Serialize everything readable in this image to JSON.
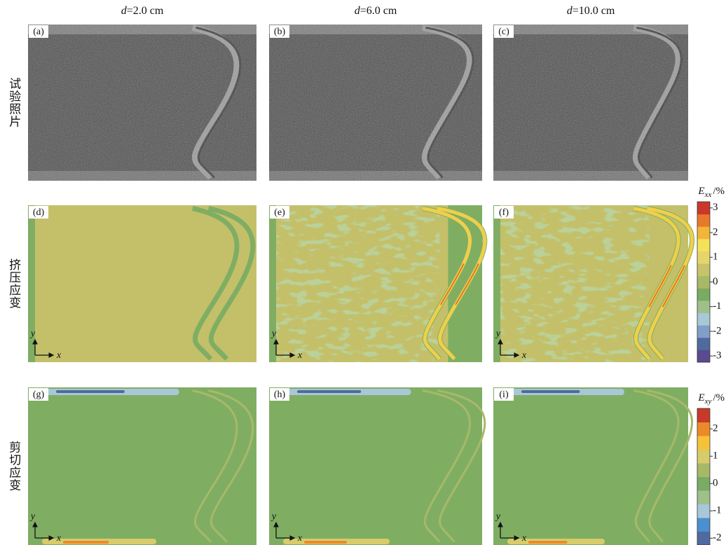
{
  "columns": [
    {
      "variable": "d",
      "value": "=2.0 cm"
    },
    {
      "variable": "d",
      "value": "=6.0 cm"
    },
    {
      "variable": "d",
      "value": "=10.0 cm"
    }
  ],
  "rows": [
    {
      "label": "试验照片",
      "panels": [
        "(a)",
        "(b)",
        "(c)"
      ]
    },
    {
      "label": "挤压应变",
      "panels": [
        "(d)",
        "(e)",
        "(f)"
      ]
    },
    {
      "label": "剪切应变",
      "panels": [
        "(g)",
        "(h)",
        "(i)"
      ]
    }
  ],
  "axis_labels": {
    "x": "x",
    "y": "y"
  },
  "colorbars": [
    {
      "symbol": "E",
      "subscript": "xx",
      "unit": "/%",
      "range": [
        -3.25,
        3.25
      ],
      "colors": [
        "#5b4a8e",
        "#4f6a9e",
        "#7f9fc7",
        "#a9c7d8",
        "#9fc08a",
        "#7aab62",
        "#a8b869",
        "#c8c36a",
        "#e6d56a",
        "#f5e25a",
        "#f2b53a",
        "#e8782a",
        "#c8392b"
      ],
      "ticks": [
        3,
        2,
        1,
        0,
        -1,
        -2,
        -3
      ]
    },
    {
      "symbol": "E",
      "subscript": "xy",
      "unit": "/%",
      "range": [
        -2.25,
        2.75
      ],
      "colors": [
        "#4f6a9e",
        "#4a8fd0",
        "#a9c7d8",
        "#9fc08a",
        "#7aab62",
        "#a8b869",
        "#d8cc6a",
        "#f5c33a",
        "#ec8a2a",
        "#c8392b"
      ],
      "ticks": [
        2,
        1,
        0,
        -1,
        -2
      ]
    }
  ]
}
